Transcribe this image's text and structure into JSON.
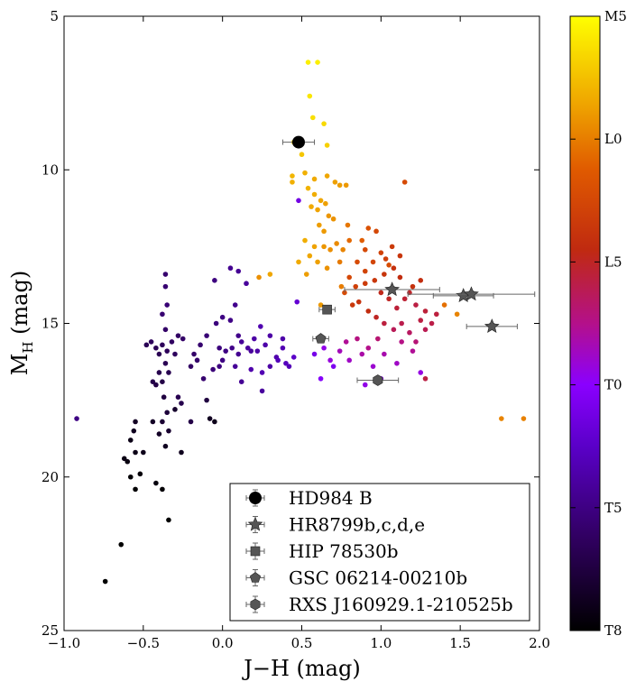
{
  "chart_data": {
    "type": "scatter",
    "title": "",
    "xlabel": "J−H (mag)",
    "ylabel_main": "M",
    "ylabel_sub": "H",
    "ylabel_unit": " (mag)",
    "xlim": [
      -1.0,
      2.0
    ],
    "ylim": [
      25,
      5
    ],
    "xticks": [
      -1.0,
      -0.5,
      0.0,
      0.5,
      1.0,
      1.5,
      2.0
    ],
    "xtick_labels": [
      "−1.0",
      "−0.5",
      "0.0",
      "0.5",
      "1.0",
      "1.5",
      "2.0"
    ],
    "yticks": [
      5,
      10,
      15,
      20,
      25
    ],
    "ytick_labels": [
      "5",
      "10",
      "15",
      "20",
      "25"
    ],
    "grid": false,
    "colorbar": {
      "ticks": [
        0,
        4,
        8,
        12,
        16,
        20
      ],
      "labels": [
        "M5",
        "L0",
        "L5",
        "T0",
        "T5",
        "T8"
      ],
      "min": 0,
      "max": 20,
      "colormap": "gnuplot"
    },
    "field_objects": [
      [
        0.54,
        6.5,
        0.5
      ],
      [
        0.6,
        6.5,
        0.5
      ],
      [
        0.55,
        7.6,
        0.8
      ],
      [
        0.57,
        8.3,
        1.0
      ],
      [
        0.64,
        8.5,
        1.2
      ],
      [
        0.66,
        9.2,
        1.5
      ],
      [
        0.45,
        9.1,
        1.6
      ],
      [
        0.5,
        9.5,
        1.8
      ],
      [
        0.44,
        10.2,
        2.3
      ],
      [
        0.44,
        10.4,
        2.5
      ],
      [
        0.52,
        10.1,
        2.5
      ],
      [
        0.58,
        10.3,
        2.7
      ],
      [
        0.66,
        10.2,
        2.8
      ],
      [
        0.71,
        10.4,
        3.0
      ],
      [
        0.74,
        10.5,
        3.1
      ],
      [
        0.78,
        10.5,
        3.2
      ],
      [
        0.54,
        10.6,
        2.4
      ],
      [
        0.58,
        10.8,
        2.6
      ],
      [
        0.62,
        11.0,
        2.8
      ],
      [
        0.65,
        11.1,
        3.0
      ],
      [
        0.6,
        11.3,
        2.9
      ],
      [
        0.56,
        11.2,
        2.7
      ],
      [
        0.67,
        11.5,
        3.3
      ],
      [
        0.7,
        11.6,
        3.4
      ],
      [
        0.61,
        11.8,
        3.1
      ],
      [
        0.64,
        12.0,
        3.2
      ],
      [
        0.52,
        12.3,
        2.6
      ],
      [
        0.58,
        12.5,
        2.9
      ],
      [
        0.64,
        12.5,
        3.3
      ],
      [
        0.72,
        12.4,
        3.6
      ],
      [
        0.68,
        12.6,
        3.5
      ],
      [
        0.76,
        12.6,
        3.8
      ],
      [
        0.55,
        12.8,
        2.8
      ],
      [
        0.6,
        13.0,
        3.0
      ],
      [
        0.66,
        13.2,
        3.4
      ],
      [
        0.48,
        13.0,
        2.7
      ],
      [
        0.53,
        13.4,
        3.1
      ],
      [
        0.74,
        13.0,
        4.1
      ],
      [
        0.79,
        11.8,
        4.2
      ],
      [
        0.8,
        12.3,
        4.6
      ],
      [
        0.88,
        12.3,
        4.9
      ],
      [
        0.92,
        11.9,
        5.5
      ],
      [
        0.97,
        12.0,
        6.0
      ],
      [
        0.9,
        12.6,
        5.9
      ],
      [
        1.0,
        12.7,
        6.3
      ],
      [
        1.03,
        12.9,
        6.5
      ],
      [
        1.07,
        12.5,
        6.7
      ],
      [
        1.12,
        12.8,
        7.0
      ],
      [
        0.85,
        13.0,
        5.8
      ],
      [
        0.9,
        13.3,
        6.2
      ],
      [
        0.95,
        13.0,
        6.1
      ],
      [
        0.8,
        13.5,
        6.0
      ],
      [
        0.84,
        13.8,
        6.4
      ],
      [
        0.9,
        13.7,
        6.6
      ],
      [
        0.96,
        13.6,
        6.9
      ],
      [
        1.02,
        13.4,
        7.0
      ],
      [
        1.08,
        13.2,
        7.2
      ],
      [
        1.12,
        13.5,
        7.5
      ],
      [
        1.0,
        14.0,
        7.8
      ],
      [
        1.05,
        14.2,
        8.0
      ],
      [
        1.1,
        14.5,
        8.4
      ],
      [
        1.15,
        14.2,
        8.3
      ],
      [
        1.18,
        14.0,
        8.1
      ],
      [
        1.22,
        14.4,
        8.6
      ],
      [
        0.75,
        13.8,
        4.0
      ],
      [
        0.77,
        14.0,
        5.8
      ],
      [
        0.82,
        14.4,
        6.8
      ],
      [
        0.86,
        14.3,
        7.1
      ],
      [
        0.92,
        14.6,
        7.5
      ],
      [
        0.97,
        14.8,
        8.0
      ],
      [
        1.02,
        15.0,
        8.5
      ],
      [
        1.08,
        15.2,
        9.0
      ],
      [
        1.13,
        15.0,
        8.8
      ],
      [
        1.18,
        15.3,
        9.2
      ],
      [
        1.22,
        15.6,
        9.6
      ],
      [
        1.28,
        15.2,
        8.9
      ],
      [
        1.32,
        15.0,
        8.7
      ],
      [
        1.35,
        14.7,
        8.5
      ],
      [
        1.28,
        14.6,
        8.4
      ],
      [
        1.25,
        14.9,
        8.6
      ],
      [
        0.98,
        15.5,
        9.5
      ],
      [
        0.92,
        15.8,
        10.0
      ],
      [
        0.88,
        16.0,
        10.5
      ],
      [
        0.85,
        15.5,
        9.8
      ],
      [
        0.78,
        15.6,
        10.2
      ],
      [
        0.74,
        15.9,
        10.8
      ],
      [
        0.8,
        16.2,
        11.0
      ],
      [
        0.95,
        16.4,
        11.2
      ],
      [
        1.02,
        16.0,
        10.6
      ],
      [
        1.1,
        16.3,
        11.0
      ],
      [
        1.25,
        16.6,
        11.5
      ],
      [
        1.0,
        16.8,
        11.8
      ],
      [
        0.9,
        17.0,
        11.6
      ],
      [
        0.68,
        16.2,
        11.4
      ],
      [
        0.64,
        15.8,
        11.6
      ],
      [
        0.62,
        16.8,
        12.2
      ],
      [
        0.7,
        16.4,
        12.5
      ],
      [
        0.58,
        16.0,
        12.8
      ],
      [
        1.15,
        10.4,
        5.8
      ],
      [
        1.05,
        13.1,
        5.7
      ],
      [
        1.2,
        13.8,
        7.2
      ],
      [
        1.25,
        13.6,
        7.4
      ],
      [
        1.4,
        14.4,
        4.4
      ],
      [
        1.48,
        14.7,
        3.8
      ],
      [
        1.76,
        18.1,
        3.8
      ],
      [
        1.9,
        18.1,
        3.9
      ],
      [
        1.13,
        15.6,
        9.9
      ],
      [
        1.2,
        15.9,
        10.2
      ],
      [
        1.28,
        16.8,
        8.6
      ],
      [
        0.3,
        13.4,
        2.8
      ],
      [
        0.23,
        13.5,
        3.5
      ],
      [
        0.62,
        14.4,
        3.2
      ],
      [
        0.48,
        11.0,
        13.0
      ],
      [
        0.47,
        14.3,
        13.6
      ],
      [
        0.45,
        16.1,
        14.0
      ],
      [
        0.42,
        16.4,
        14.5
      ],
      [
        0.38,
        15.8,
        14.6
      ],
      [
        0.34,
        16.1,
        14.8
      ],
      [
        0.3,
        16.4,
        15.0
      ],
      [
        0.27,
        15.7,
        14.9
      ],
      [
        0.24,
        15.1,
        14.7
      ],
      [
        0.2,
        15.5,
        15.0
      ],
      [
        0.16,
        15.8,
        15.2
      ],
      [
        0.12,
        15.6,
        15.4
      ],
      [
        0.1,
        16.0,
        15.6
      ],
      [
        0.06,
        15.8,
        15.8
      ],
      [
        0.02,
        15.9,
        16.0
      ],
      [
        -0.02,
        15.8,
        16.2
      ],
      [
        0.1,
        13.3,
        15.5
      ],
      [
        0.05,
        13.2,
        15.6
      ],
      [
        0.15,
        13.7,
        15.3
      ],
      [
        0.08,
        14.4,
        15.7
      ],
      [
        -0.05,
        13.6,
        16.1
      ],
      [
        0.0,
        14.8,
        16.0
      ],
      [
        -0.04,
        15.0,
        16.2
      ],
      [
        -0.1,
        15.4,
        16.4
      ],
      [
        -0.14,
        15.7,
        16.6
      ],
      [
        -0.18,
        16.0,
        16.8
      ],
      [
        -0.2,
        16.4,
        16.9
      ],
      [
        -0.16,
        16.2,
        16.7
      ],
      [
        -0.25,
        15.5,
        16.8
      ],
      [
        -0.28,
        15.4,
        16.9
      ],
      [
        0.18,
        16.5,
        14.8
      ],
      [
        0.08,
        16.4,
        15.4
      ],
      [
        0.0,
        16.2,
        16.0
      ],
      [
        -0.06,
        16.5,
        16.3
      ],
      [
        -0.12,
        16.8,
        16.6
      ],
      [
        -0.02,
        16.4,
        16.1
      ],
      [
        0.12,
        16.9,
        15.5
      ],
      [
        0.25,
        16.6,
        14.6
      ],
      [
        0.22,
        15.9,
        15.0
      ],
      [
        0.3,
        15.4,
        15.0
      ],
      [
        0.38,
        15.5,
        14.9
      ],
      [
        0.4,
        16.3,
        14.3
      ],
      [
        -0.32,
        15.6,
        17.0
      ],
      [
        -0.35,
        15.9,
        17.2
      ],
      [
        -0.38,
        15.7,
        17.2
      ],
      [
        -0.4,
        16.0,
        17.4
      ],
      [
        -0.42,
        15.8,
        17.4
      ],
      [
        -0.36,
        16.3,
        17.4
      ],
      [
        -0.4,
        16.6,
        17.6
      ],
      [
        -0.44,
        16.9,
        17.7
      ],
      [
        -0.38,
        16.9,
        17.8
      ],
      [
        -0.34,
        16.6,
        17.5
      ],
      [
        -0.3,
        16.0,
        17.1
      ],
      [
        -0.45,
        15.6,
        17.2
      ],
      [
        -0.48,
        15.7,
        17.3
      ],
      [
        -0.36,
        13.4,
        16.6
      ],
      [
        -0.36,
        13.8,
        16.5
      ],
      [
        -0.35,
        14.4,
        16.4
      ],
      [
        -0.38,
        14.7,
        16.5
      ],
      [
        -0.36,
        15.2,
        16.8
      ],
      [
        -0.92,
        18.1,
        16.0
      ],
      [
        -0.42,
        17.0,
        17.8
      ],
      [
        -0.37,
        17.4,
        18.0
      ],
      [
        -0.35,
        17.9,
        18.2
      ],
      [
        -0.38,
        18.2,
        18.4
      ],
      [
        -0.34,
        18.5,
        18.5
      ],
      [
        -0.28,
        17.4,
        17.5
      ],
      [
        -0.26,
        17.6,
        17.6
      ],
      [
        -0.2,
        18.2,
        17.8
      ],
      [
        -0.3,
        17.8,
        18.6
      ],
      [
        -0.4,
        18.6,
        18.8
      ],
      [
        -0.36,
        19.0,
        19.0
      ],
      [
        -0.44,
        18.2,
        18.8
      ],
      [
        -0.5,
        19.2,
        19.2
      ],
      [
        -0.56,
        18.5,
        19.0
      ],
      [
        -0.55,
        18.2,
        18.9
      ],
      [
        -0.58,
        18.8,
        19.3
      ],
      [
        -0.6,
        19.5,
        19.5
      ],
      [
        -0.62,
        19.4,
        19.4
      ],
      [
        -0.55,
        19.2,
        19.3
      ],
      [
        -0.58,
        20.0,
        19.8
      ],
      [
        -0.55,
        20.4,
        19.9
      ],
      [
        -0.52,
        19.9,
        19.7
      ],
      [
        -0.42,
        20.2,
        19.6
      ],
      [
        -0.38,
        20.4,
        19.8
      ],
      [
        -0.26,
        19.2,
        19.1
      ],
      [
        -0.34,
        21.4,
        20.0
      ],
      [
        -0.64,
        22.2,
        20.0
      ],
      [
        -0.74,
        23.4,
        20.0
      ],
      [
        -0.08,
        18.1,
        19.0
      ],
      [
        -0.05,
        18.2,
        19.2
      ],
      [
        -0.1,
        17.5,
        18.0
      ],
      [
        0.25,
        17.2,
        15.2
      ],
      [
        0.1,
        15.4,
        15.8
      ],
      [
        0.05,
        14.9,
        15.9
      ],
      [
        0.18,
        15.9,
        15.3
      ],
      [
        0.35,
        16.2,
        14.4
      ]
    ],
    "series": [
      {
        "name": "HD984 B",
        "marker": "circle",
        "x": [
          0.48
        ],
        "y": [
          9.1
        ],
        "xerr": [
          0.1
        ],
        "yerr": [
          0.1
        ]
      },
      {
        "name": "HR8799b,c,d,e",
        "marker": "star",
        "x": [
          1.07,
          1.52,
          1.57,
          1.7
        ],
        "y": [
          13.9,
          14.1,
          14.05,
          15.1
        ],
        "xerr": [
          0.3,
          0.19,
          0.4,
          0.16
        ],
        "yerr": [
          0.1,
          0.1,
          0.1,
          0.1
        ]
      },
      {
        "name": "HIP 78530b",
        "marker": "square",
        "x": [
          0.66
        ],
        "y": [
          14.55
        ],
        "xerr": [
          0.05
        ],
        "yerr": [
          0.05
        ]
      },
      {
        "name": "GSC 06214-00210b",
        "marker": "pentagon",
        "x": [
          0.62
        ],
        "y": [
          15.5
        ],
        "xerr": [
          0.05
        ],
        "yerr": [
          0.05
        ]
      },
      {
        "name": "RXS J160929.1-210525b",
        "marker": "hexagon",
        "x": [
          0.98
        ],
        "y": [
          16.85
        ],
        "xerr": [
          0.13
        ],
        "yerr": [
          0.1
        ]
      }
    ],
    "legend_position": "lower-right",
    "colors": {
      "HD984 B": "#000000",
      "HR8799b,c,d,e": "#555555",
      "HIP 78530b": "#555555",
      "GSC 06214-00210b": "#555555",
      "RXS J160929.1-210525b": "#555555",
      "errorbar": "#666666"
    }
  }
}
